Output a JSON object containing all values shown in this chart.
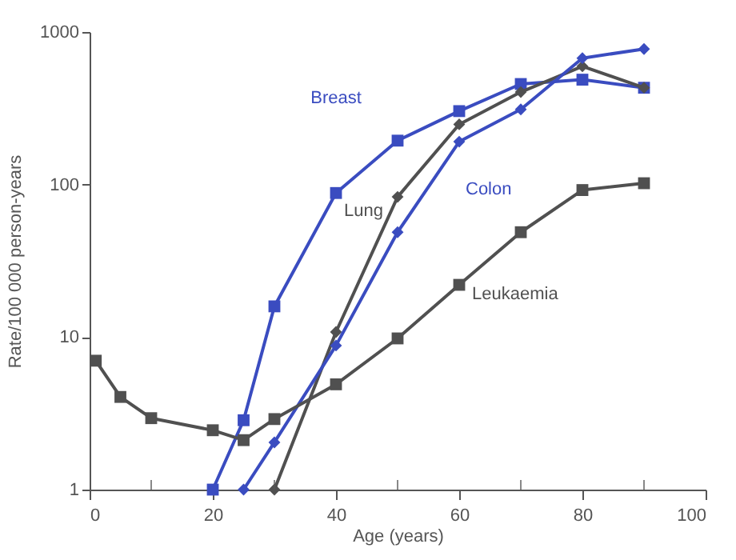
{
  "chart_data": {
    "type": "line",
    "xlabel": "Age (years)",
    "ylabel": "Rate/100 000 person-years",
    "log": "y",
    "xlim": [
      0,
      100
    ],
    "xticks": [
      0,
      {
        "value": 10,
        "label": null
      },
      20,
      {
        "value": 30,
        "label": null
      },
      40,
      {
        "value": 50,
        "label": null
      },
      60,
      {
        "value": 70,
        "label": null
      },
      80,
      {
        "value": 90,
        "label": null
      },
      100
    ],
    "ylim": [
      1,
      1000
    ],
    "yticks": [
      1,
      10,
      100,
      1000
    ],
    "grid": false,
    "line_style": "solid",
    "series": [
      {
        "name": "Breast",
        "color": "#3a4cc0",
        "marker": "square",
        "x": [
          20,
          25,
          30,
          40,
          50,
          60,
          70,
          80,
          90
        ],
        "values": [
          1,
          2.85,
          15.9,
          88,
          194,
          303,
          456,
          487,
          431
        ]
      },
      {
        "name": "Lung",
        "color": "#505050",
        "marker": "diamond",
        "x": [
          30,
          40,
          50,
          60,
          70,
          80,
          90
        ],
        "values": [
          1,
          10.8,
          83,
          248,
          404,
          596,
          431
        ]
      },
      {
        "name": "Colon",
        "color": "#3a4cc0",
        "marker": "diamond",
        "x": [
          25,
          30,
          40,
          50,
          60,
          70,
          80,
          90
        ],
        "values": [
          1,
          2.04,
          8.8,
          48.7,
          191,
          311,
          674,
          774
        ]
      },
      {
        "name": "Leukaemia",
        "color": "#505050",
        "marker": "square",
        "x": [
          1,
          5,
          10,
          20,
          25,
          30,
          40,
          50,
          60,
          70,
          80,
          90
        ],
        "values": [
          7.0,
          4.05,
          2.94,
          2.45,
          2.11,
          2.9,
          4.9,
          9.8,
          22,
          48.7,
          92,
          102
        ]
      }
    ]
  }
}
